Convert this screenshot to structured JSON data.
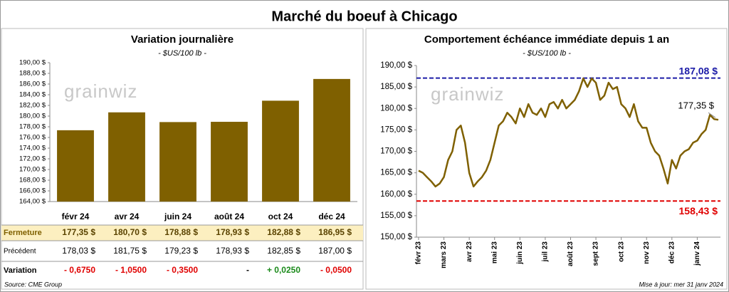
{
  "title": "Marché du boeuf à Chicago",
  "watermark": "grainwiz",
  "source": "Source: CME Group",
  "updated": "Mise à jour: mer 31 janv 2024",
  "chart_data": [
    {
      "type": "bar",
      "title": "Variation journalière",
      "subtitle": "- $US/100 lb -",
      "color": "#7f6000",
      "categories": [
        "févr 24",
        "avr 24",
        "juin 24",
        "août 24",
        "oct 24",
        "déc 24"
      ],
      "values": [
        177.35,
        180.7,
        178.88,
        178.93,
        182.88,
        186.95
      ],
      "ylim": [
        164,
        190
      ],
      "yticks": [
        {
          "value": 164,
          "label": "164,00 $"
        },
        {
          "value": 166,
          "label": "166,00 $"
        },
        {
          "value": 168,
          "label": "168,00 $"
        },
        {
          "value": 170,
          "label": "170,00 $"
        },
        {
          "value": 172,
          "label": "172,00 $"
        },
        {
          "value": 174,
          "label": "174,00 $"
        },
        {
          "value": 176,
          "label": "176,00 $"
        },
        {
          "value": 178,
          "label": "178,00 $"
        },
        {
          "value": 180,
          "label": "180,00 $"
        },
        {
          "value": 182,
          "label": "182,00 $"
        },
        {
          "value": 184,
          "label": "184,00 $"
        },
        {
          "value": 186,
          "label": "186,00 $"
        },
        {
          "value": 188,
          "label": "188,00 $"
        },
        {
          "value": 190,
          "label": "190,00 $"
        }
      ],
      "grid": false
    },
    {
      "type": "line",
      "title": "Comportement échéance immédiate depuis 1 an",
      "subtitle": "- $US/100 lb -",
      "color": "#7f6000",
      "categories": [
        "févr 23",
        null,
        null,
        null,
        null,
        null,
        "mars 23",
        null,
        null,
        null,
        null,
        null,
        "avr 23",
        null,
        null,
        null,
        null,
        null,
        "mai 23",
        null,
        null,
        null,
        null,
        null,
        "juin 23",
        null,
        null,
        null,
        null,
        null,
        "juil 23",
        null,
        null,
        null,
        null,
        null,
        "août 23",
        null,
        null,
        null,
        null,
        null,
        "sept 23",
        null,
        null,
        null,
        null,
        null,
        "oct 23",
        null,
        null,
        null,
        null,
        null,
        "nov 23",
        null,
        null,
        null,
        null,
        null,
        "déc 23",
        null,
        null,
        null,
        null,
        null,
        "janv 24",
        null,
        null,
        null,
        null,
        null
      ],
      "values": [
        165.5,
        165,
        164,
        163,
        161.8,
        162.5,
        164,
        168,
        170,
        175,
        176,
        172,
        165,
        161.8,
        163,
        164,
        165.5,
        168,
        172,
        176,
        177,
        179,
        178,
        176.5,
        180,
        178,
        181,
        179,
        178.5,
        180,
        178,
        181,
        181.5,
        180,
        182,
        180,
        181,
        182,
        184,
        187,
        185,
        187,
        186,
        182,
        183,
        186,
        184.5,
        185,
        181,
        180,
        178,
        181,
        177,
        175.5,
        175.5,
        172,
        170,
        169,
        166,
        162.5,
        168,
        166,
        169,
        170,
        170.5,
        172,
        172.5,
        174,
        175,
        178.5,
        177.5,
        177.35
      ],
      "ylim": [
        150,
        190
      ],
      "yticks": [
        {
          "value": 150,
          "label": "150,00 $"
        },
        {
          "value": 155,
          "label": "155,00 $"
        },
        {
          "value": 160,
          "label": "160,00 $"
        },
        {
          "value": 165,
          "label": "165,00 $"
        },
        {
          "value": 170,
          "label": "170,00 $"
        },
        {
          "value": 175,
          "label": "175,00 $"
        },
        {
          "value": 180,
          "label": "180,00 $"
        },
        {
          "value": 185,
          "label": "185,00 $"
        },
        {
          "value": 190,
          "label": "190,00 $"
        }
      ],
      "reference_lines": [
        {
          "value": 187.08,
          "label": "187,08 $",
          "color": "#1c1ca8"
        },
        {
          "value": 158.43,
          "label": "158,43 $",
          "color": "#e00000"
        }
      ],
      "annotation": {
        "label": "177,35 $"
      },
      "grid": false
    }
  ],
  "table": {
    "rows": [
      {
        "label": "Fermeture",
        "cells": [
          "177,35 $",
          "180,70 $",
          "178,88 $",
          "178,93 $",
          "182,88 $",
          "186,95 $"
        ]
      },
      {
        "label": "Précédent",
        "cells": [
          "178,03 $",
          "181,75 $",
          "179,23 $",
          "178,93 $",
          "182,85 $",
          "187,00 $"
        ]
      },
      {
        "label": "Variation",
        "cells": [
          "- 0,6750",
          "- 1,0500",
          "- 0,3500",
          "-",
          "+ 0,0250",
          "- 0,0500"
        ],
        "colors": [
          "#e00000",
          "#e00000",
          "#e00000",
          "#000000",
          "#1a8a1a",
          "#e00000"
        ]
      }
    ]
  }
}
